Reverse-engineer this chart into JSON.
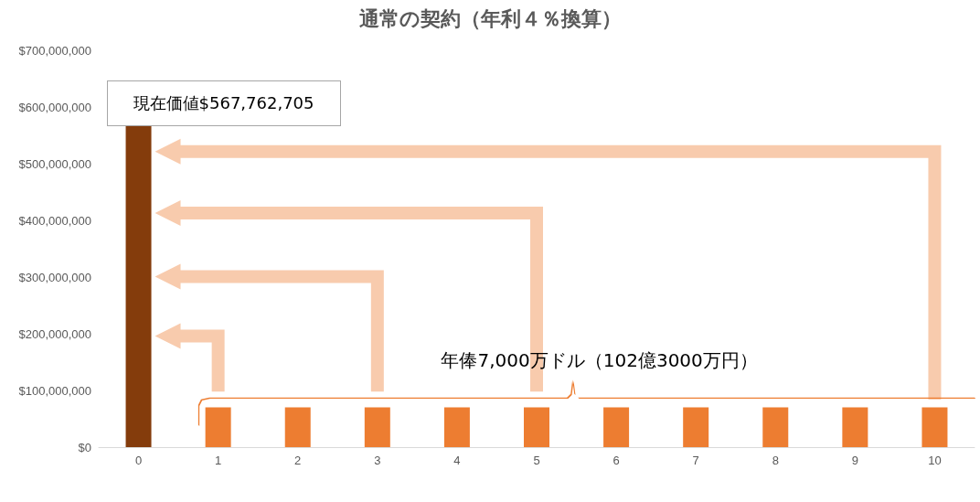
{
  "chart_data": {
    "type": "bar",
    "title": "通常の契約（年利４％換算）",
    "categories": [
      "0",
      "1",
      "2",
      "3",
      "4",
      "5",
      "6",
      "7",
      "8",
      "9",
      "10"
    ],
    "values": [
      567762705,
      70000000,
      70000000,
      70000000,
      70000000,
      70000000,
      70000000,
      70000000,
      70000000,
      70000000,
      70000000
    ],
    "colors": [
      "#843c0c",
      "#ed7d31",
      "#ed7d31",
      "#ed7d31",
      "#ed7d31",
      "#ed7d31",
      "#ed7d31",
      "#ed7d31",
      "#ed7d31",
      "#ed7d31",
      "#ed7d31"
    ],
    "ylim": [
      0,
      700000000
    ],
    "yticks": [
      {
        "value": 0,
        "label": "$0"
      },
      {
        "value": 100000000,
        "label": "$100,000,000"
      },
      {
        "value": 200000000,
        "label": "$200,000,000"
      },
      {
        "value": 300000000,
        "label": "$300,000,000"
      },
      {
        "value": 400000000,
        "label": "$400,000,000"
      },
      {
        "value": 500000000,
        "label": "$500,000,000"
      },
      {
        "value": 600000000,
        "label": "$600,000,000"
      },
      {
        "value": 700000000,
        "label": "$700,000,000"
      }
    ],
    "grid": false,
    "annotations": [
      "現在価値$567,762,705",
      "年俸7,000万ドル（102億3000万円）"
    ]
  }
}
